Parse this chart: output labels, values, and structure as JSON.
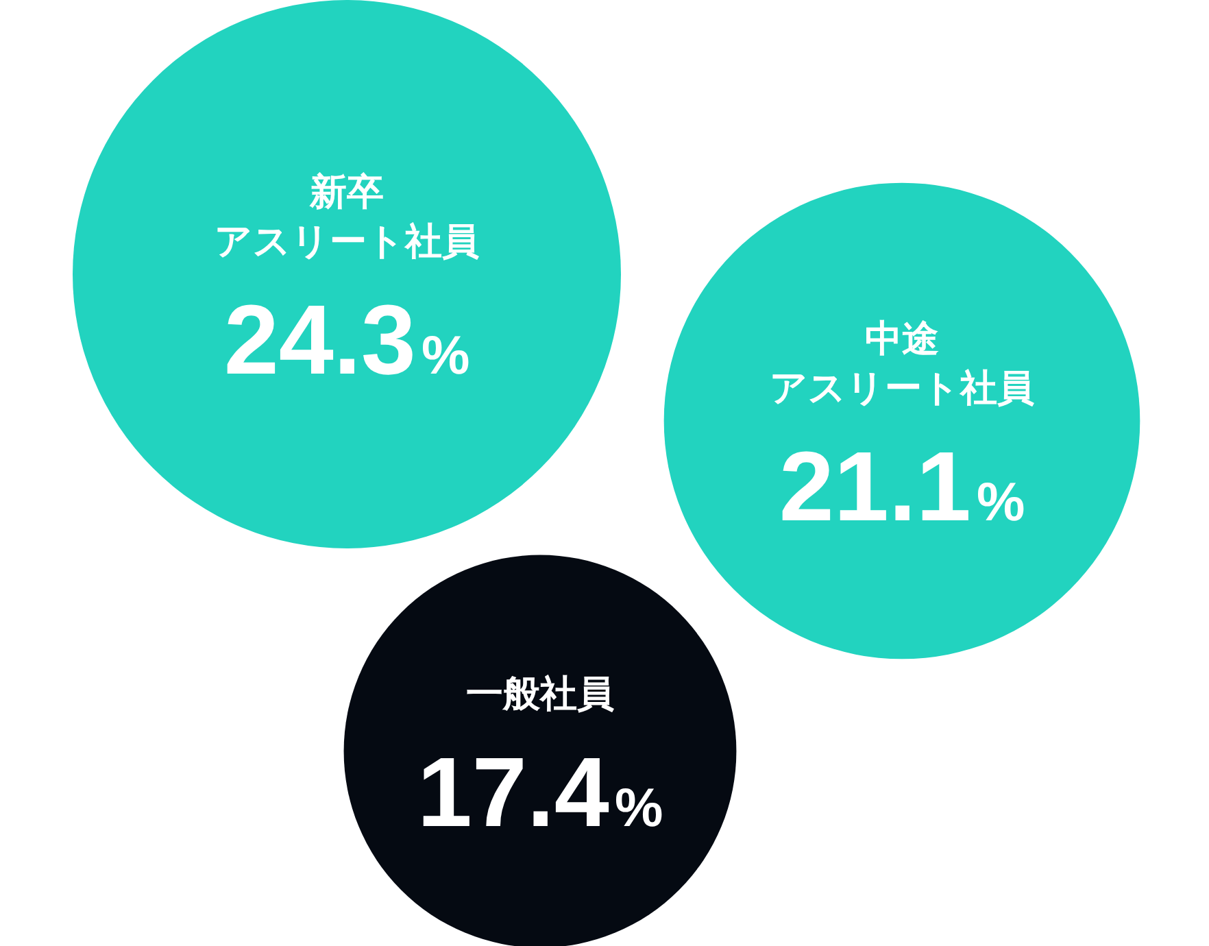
{
  "chart_data": {
    "type": "other",
    "categories": [
      "新卒アスリート社員",
      "中途アスリート社員",
      "一般社員"
    ],
    "values": [
      24.3,
      21.1,
      17.4
    ],
    "value_labels": [
      "24.3%",
      "21.1%",
      "17.4%"
    ],
    "colors": [
      "#22d3bf",
      "#22d3bf",
      "#050a12"
    ]
  }
}
